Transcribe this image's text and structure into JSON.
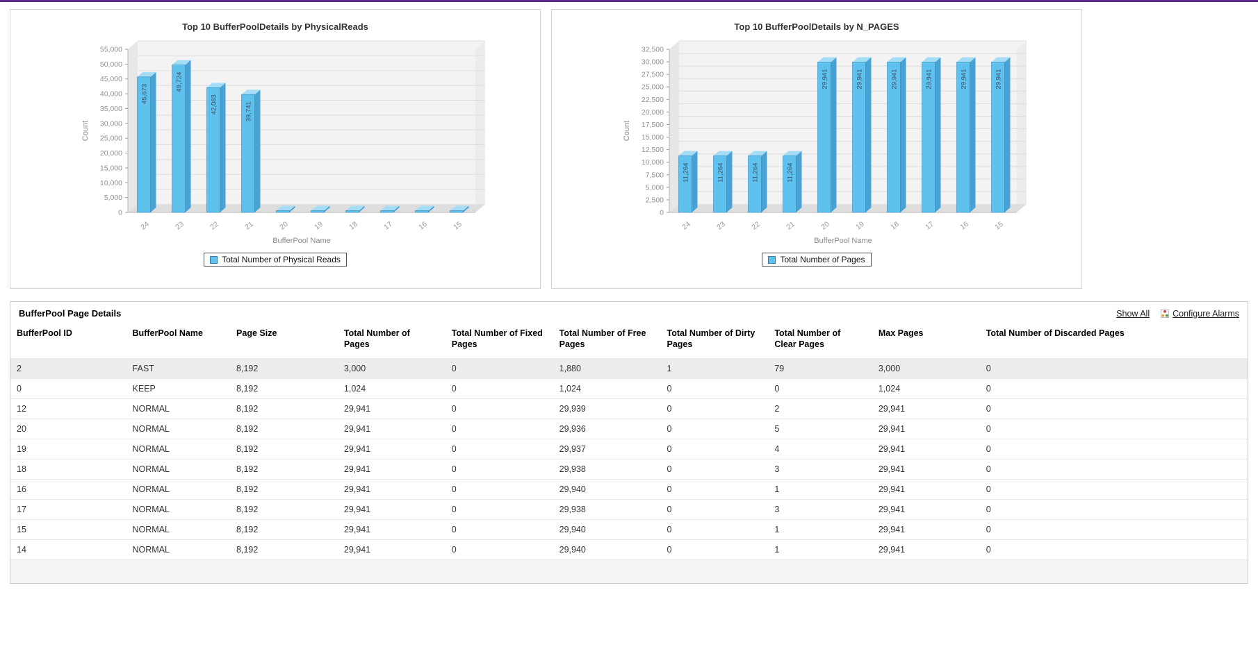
{
  "page": {
    "top_accent_color": "#5b2d90"
  },
  "chart_data": [
    {
      "type": "bar",
      "title": "Top 10 BufferPoolDetails by PhysicalReads",
      "ylabel": "Count",
      "xlabel": "BufferPool Name",
      "legend": "Total Number of Physical Reads",
      "legend_position": "bottom",
      "grid": true,
      "categories": [
        "24",
        "23",
        "22",
        "21",
        "20",
        "19",
        "18",
        "17",
        "16",
        "15"
      ],
      "values": [
        45673,
        49724,
        42083,
        39741,
        0,
        0,
        0,
        0,
        0,
        0
      ],
      "value_labels": [
        "45,673",
        "49,724",
        "42,083",
        "39,741",
        "",
        "",
        "",
        "",
        "",
        ""
      ],
      "ylim": [
        0,
        55000
      ],
      "ymax": 55000,
      "ystep": 5000,
      "bar_color": "#5fc1ee",
      "bar_top_color": "#a6ddf6",
      "bar_side_color": "#49a2d3",
      "bar_edge_color": "#3487b4"
    },
    {
      "type": "bar",
      "title": "Top 10 BufferPoolDetails by N_PAGES",
      "ylabel": "Count",
      "xlabel": "BufferPool Name",
      "legend": "Total Number of Pages",
      "legend_position": "bottom",
      "grid": true,
      "categories": [
        "24",
        "23",
        "22",
        "21",
        "20",
        "19",
        "18",
        "17",
        "16",
        "15"
      ],
      "values": [
        11264,
        11264,
        11264,
        11264,
        29941,
        29941,
        29941,
        29941,
        29941,
        29941
      ],
      "value_labels": [
        "11,264",
        "11,264",
        "11,264",
        "11,264",
        "29,941",
        "29,941",
        "29,941",
        "29,941",
        "29,941",
        "29,941"
      ],
      "ylim": [
        0,
        32500
      ],
      "ymax": 32500,
      "ystep": 2500,
      "bar_color": "#5fc1ee",
      "bar_top_color": "#a6ddf6",
      "bar_side_color": "#49a2d3",
      "bar_edge_color": "#3487b4"
    }
  ],
  "table": {
    "title": "BufferPool Page Details",
    "links": {
      "show_all": "Show All",
      "configure_alarms": "Configure Alarms"
    },
    "columns": [
      "BufferPool ID",
      "BufferPool Name",
      "Page Size",
      "Total Number of Pages",
      "Total Number of Fixed Pages",
      "Total Number of Free Pages",
      "Total Number of Dirty Pages",
      "Total Number of Clear Pages",
      "Max Pages",
      "Total Number of Discarded Pages"
    ],
    "rows": [
      [
        "2",
        "FAST",
        "8,192",
        "3,000",
        "0",
        "1,880",
        "1",
        "79",
        "3,000",
        "0"
      ],
      [
        "0",
        "KEEP",
        "8,192",
        "1,024",
        "0",
        "1,024",
        "0",
        "0",
        "1,024",
        "0"
      ],
      [
        "12",
        "NORMAL",
        "8,192",
        "29,941",
        "0",
        "29,939",
        "0",
        "2",
        "29,941",
        "0"
      ],
      [
        "20",
        "NORMAL",
        "8,192",
        "29,941",
        "0",
        "29,936",
        "0",
        "5",
        "29,941",
        "0"
      ],
      [
        "19",
        "NORMAL",
        "8,192",
        "29,941",
        "0",
        "29,937",
        "0",
        "4",
        "29,941",
        "0"
      ],
      [
        "18",
        "NORMAL",
        "8,192",
        "29,941",
        "0",
        "29,938",
        "0",
        "3",
        "29,941",
        "0"
      ],
      [
        "16",
        "NORMAL",
        "8,192",
        "29,941",
        "0",
        "29,940",
        "0",
        "1",
        "29,941",
        "0"
      ],
      [
        "17",
        "NORMAL",
        "8,192",
        "29,941",
        "0",
        "29,938",
        "0",
        "3",
        "29,941",
        "0"
      ],
      [
        "15",
        "NORMAL",
        "8,192",
        "29,941",
        "0",
        "29,940",
        "0",
        "1",
        "29,941",
        "0"
      ],
      [
        "14",
        "NORMAL",
        "8,192",
        "29,941",
        "0",
        "29,940",
        "0",
        "1",
        "29,941",
        "0"
      ]
    ]
  }
}
